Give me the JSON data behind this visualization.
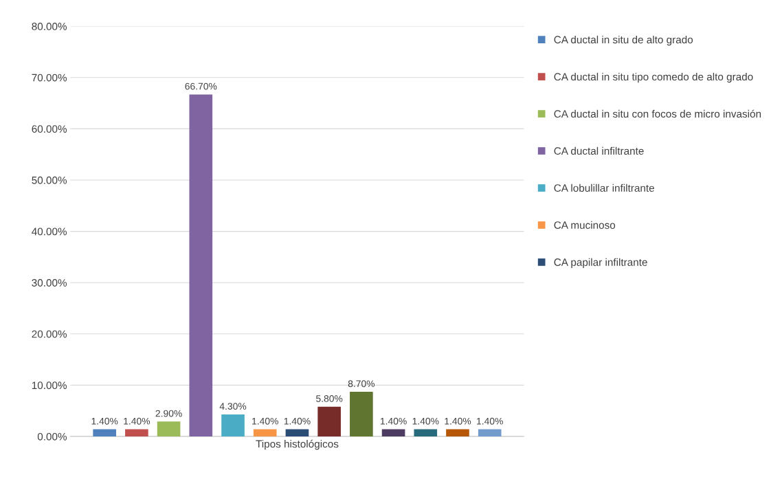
{
  "chart_data": {
    "type": "bar",
    "categories": [
      "Tipos histológicos"
    ],
    "series": [
      {
        "name": "CA ductal in situ de alto grado",
        "color": "#4f81bd",
        "values": [
          1.4
        ],
        "value_labels": [
          "1.40%"
        ]
      },
      {
        "name": "CA ductal in situ tipo comedo de alto grado",
        "color": "#c0504d",
        "values": [
          1.4
        ],
        "value_labels": [
          "1.40%"
        ]
      },
      {
        "name": "CA ductal in situ con focos de micro invasión",
        "color": "#9bbb59",
        "values": [
          2.9
        ],
        "value_labels": [
          "2.90%"
        ]
      },
      {
        "name": "CA ductal infiltrante",
        "color": "#8064a2",
        "values": [
          66.7
        ],
        "value_labels": [
          "66.70%"
        ]
      },
      {
        "name": "CA lobulillar infiltrante",
        "color": "#4bacc6",
        "values": [
          4.3
        ],
        "value_labels": [
          "4.30%"
        ]
      },
      {
        "name": "CA mucinoso",
        "color": "#f79646",
        "values": [
          1.4
        ],
        "value_labels": [
          "1.40%"
        ]
      },
      {
        "name": "CA papilar infiltrante",
        "color": "#2c4d75",
        "values": [
          1.4
        ],
        "value_labels": [
          "1.40%"
        ]
      },
      {
        "color": "#772c2a",
        "values": [
          5.8
        ],
        "value_labels": [
          "5.80%"
        ]
      },
      {
        "color": "#5f7530",
        "values": [
          8.7
        ],
        "value_labels": [
          "8.70%"
        ]
      },
      {
        "color": "#4d3b62",
        "values": [
          1.4
        ],
        "value_labels": [
          "1.40%"
        ]
      },
      {
        "color": "#276a7c",
        "values": [
          1.4
        ],
        "value_labels": [
          "1.40%"
        ]
      },
      {
        "color": "#b65708",
        "values": [
          1.4
        ],
        "value_labels": [
          "1.40%"
        ]
      },
      {
        "color": "#729aca",
        "values": [
          1.4
        ],
        "value_labels": [
          "1.40%"
        ]
      }
    ],
    "ylim": [
      0,
      80
    ],
    "yticks": [
      {
        "value": 0,
        "label": "0.00%"
      },
      {
        "value": 10,
        "label": "10.00%"
      },
      {
        "value": 20,
        "label": "20.00%"
      },
      {
        "value": 30,
        "label": "30.00%"
      },
      {
        "value": 40,
        "label": "40.00%"
      },
      {
        "value": 50,
        "label": "50.00%"
      },
      {
        "value": 60,
        "label": "60.00%"
      },
      {
        "value": 70,
        "label": "70.00%"
      },
      {
        "value": 80,
        "label": "80.00%"
      }
    ],
    "grid": "y",
    "legend": "right"
  }
}
